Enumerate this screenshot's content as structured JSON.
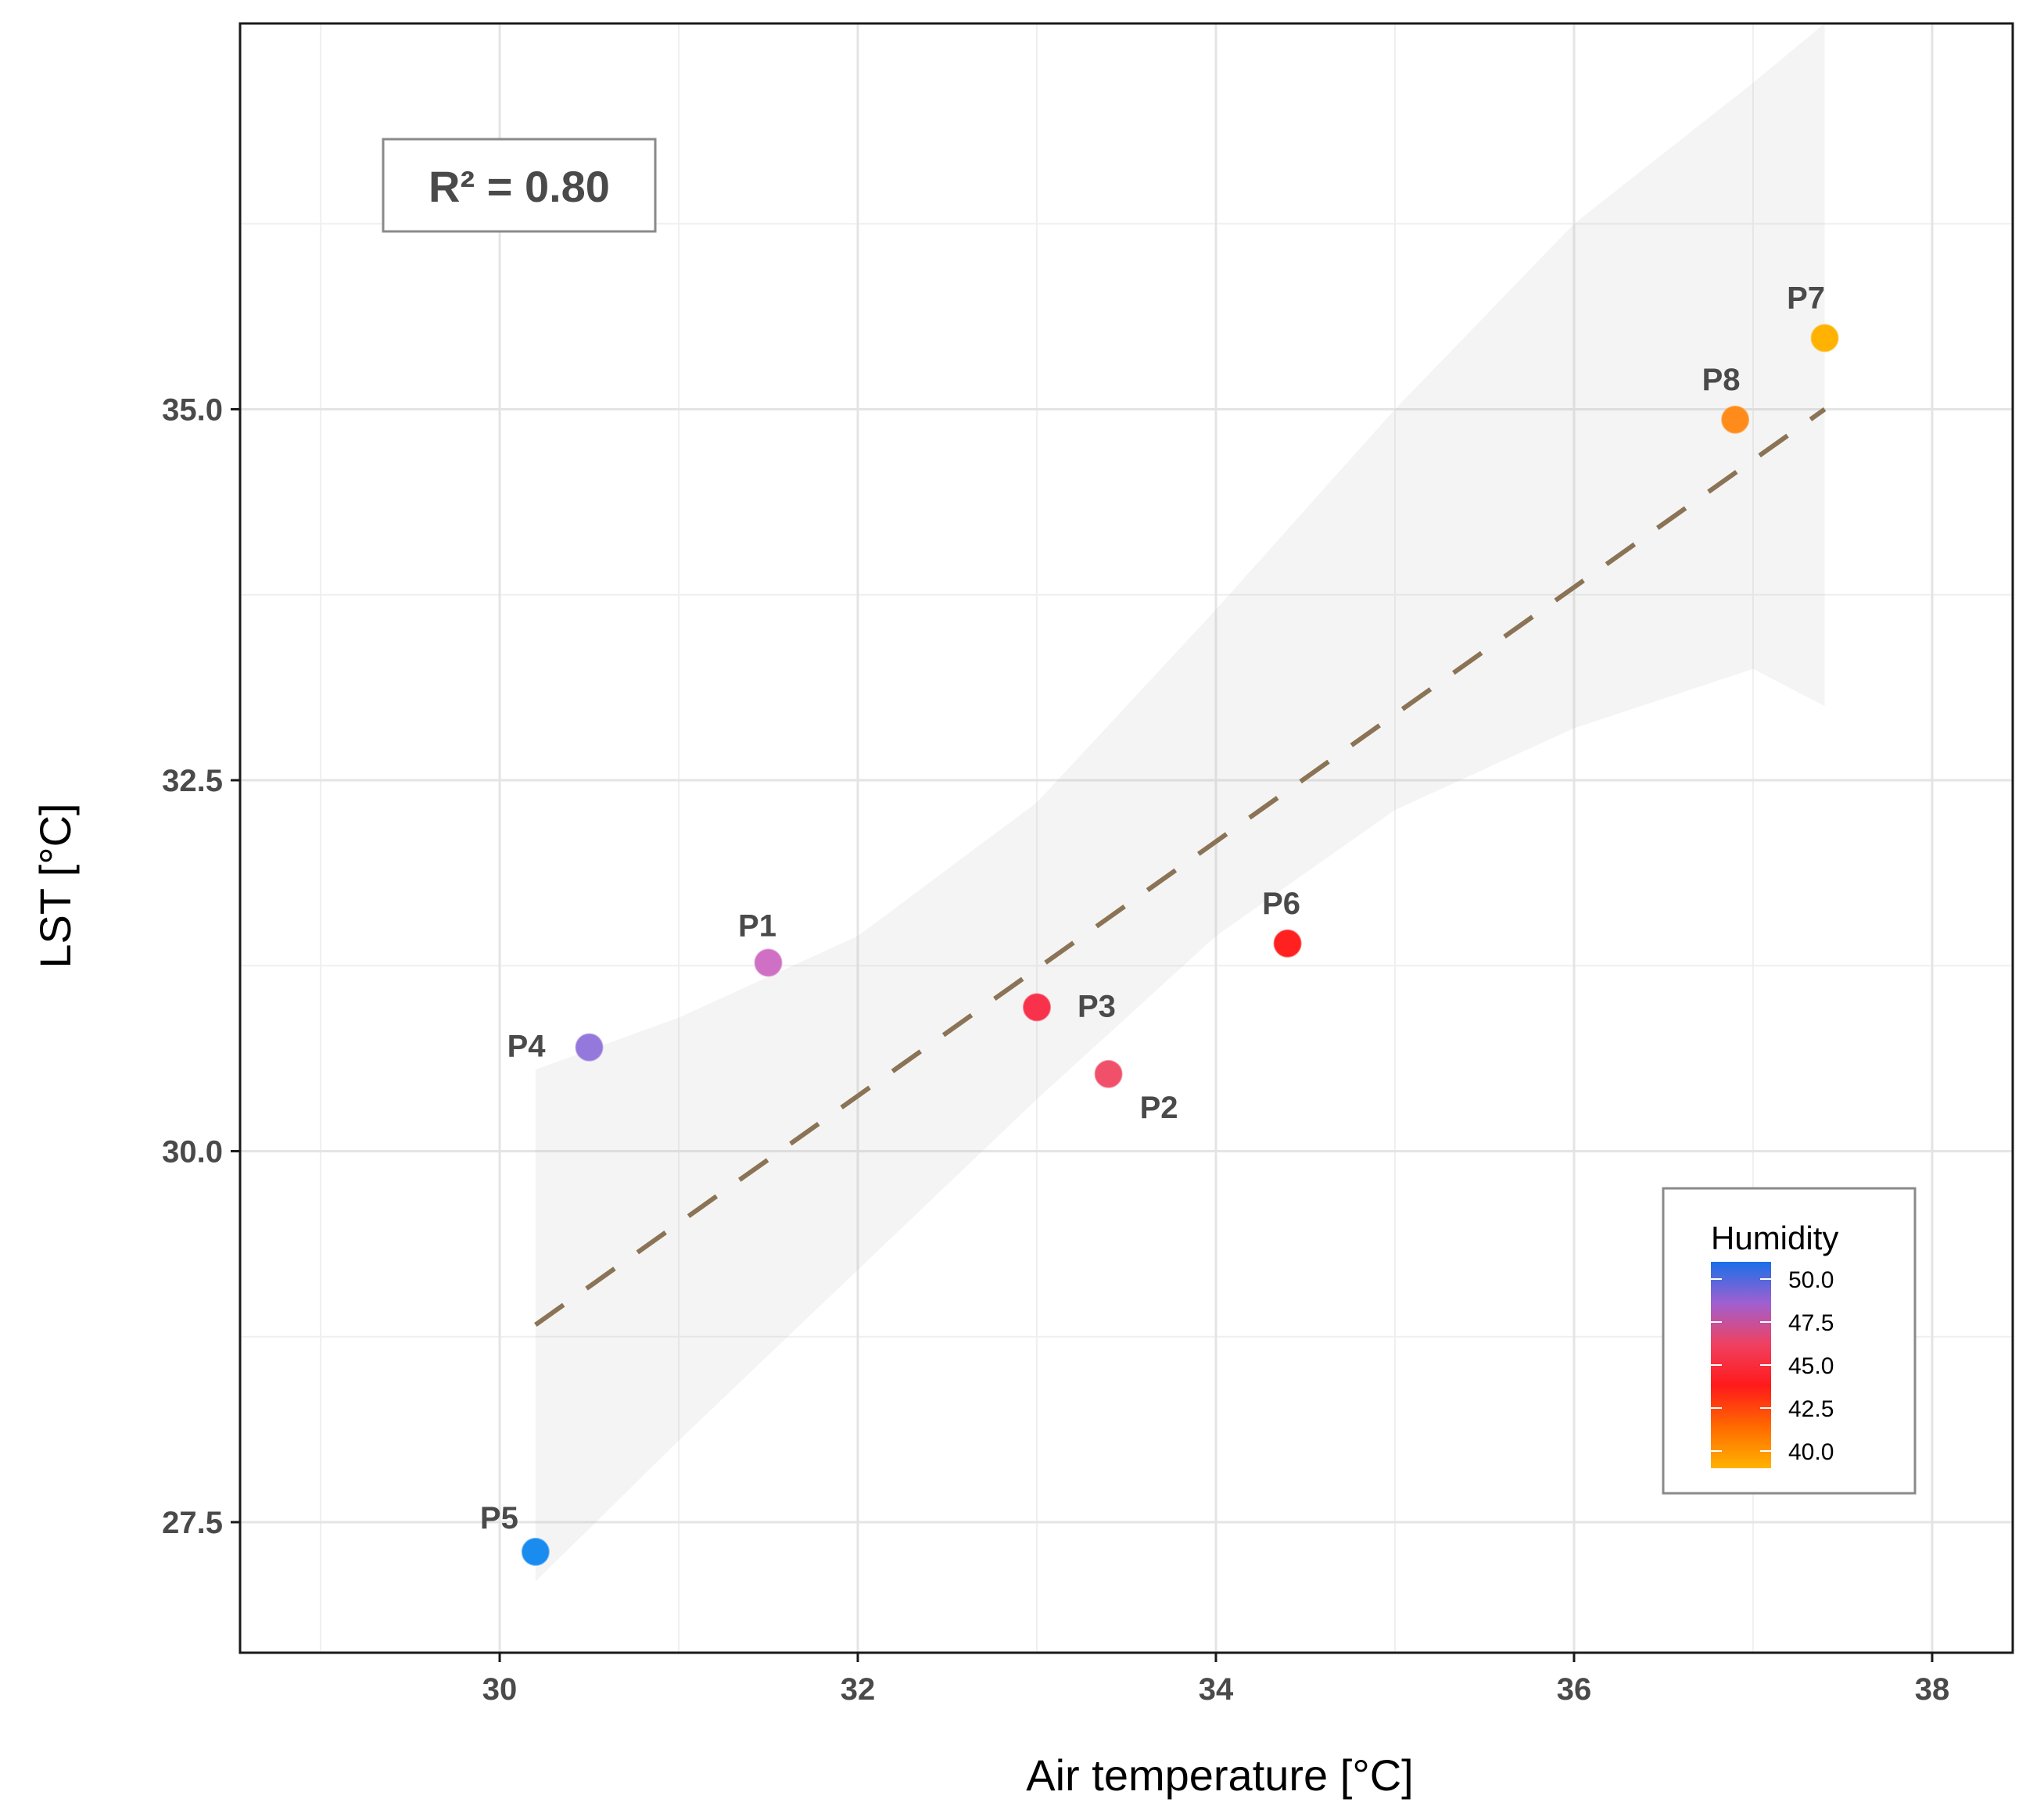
{
  "chart_data": {
    "type": "scatter",
    "xlabel": "Air temperature [°C]",
    "ylabel": "LST [°C]",
    "xlim": [
      28.55,
      38.45
    ],
    "ylim": [
      26.62,
      37.6
    ],
    "x_ticks": [
      "30",
      "32",
      "34",
      "36",
      "38"
    ],
    "x_tick_values": [
      30,
      32,
      34,
      36,
      38
    ],
    "y_ticks": [
      "27.5",
      "30.0",
      "32.5",
      "35.0"
    ],
    "y_tick_values": [
      27.5,
      30.0,
      32.5,
      35.0
    ],
    "x_minor_values": [
      29,
      31,
      33,
      35,
      37
    ],
    "y_minor_values": [
      28.75,
      31.25,
      33.75,
      36.25
    ],
    "grid": true,
    "annotation": "R² = 0.80",
    "points": [
      {
        "label": "P1",
        "x": 31.5,
        "y": 31.27,
        "humidity": 48.0,
        "color": "#d070c4"
      },
      {
        "label": "P2",
        "x": 33.4,
        "y": 30.52,
        "humidity": 46.5,
        "color": "#f0506a"
      },
      {
        "label": "P3",
        "x": 33.0,
        "y": 30.97,
        "humidity": 45.5,
        "color": "#f8324a"
      },
      {
        "label": "P4",
        "x": 30.5,
        "y": 30.7,
        "humidity": 49.0,
        "color": "#9478dc"
      },
      {
        "label": "P5",
        "x": 30.2,
        "y": 27.3,
        "humidity": 51.0,
        "color": "#1a8cf0"
      },
      {
        "label": "P6",
        "x": 34.4,
        "y": 31.4,
        "humidity": 44.8,
        "color": "#ff2020"
      },
      {
        "label": "P7",
        "x": 37.4,
        "y": 35.48,
        "humidity": 39.5,
        "color": "#ffb300"
      },
      {
        "label": "P8",
        "x": 36.9,
        "y": 34.93,
        "humidity": 41.5,
        "color": "#ff8c1a"
      }
    ],
    "fit_line": {
      "x": [
        30.2,
        37.4
      ],
      "y": [
        28.83,
        35.0
      ],
      "color": "#8b7355",
      "style": "dashed"
    },
    "confidence_band": {
      "x": [
        30.2,
        31.0,
        32.0,
        33.0,
        34.0,
        35.0,
        36.0,
        37.0,
        37.4
      ],
      "upper": [
        30.55,
        30.9,
        31.45,
        32.35,
        33.65,
        35.0,
        36.25,
        37.2,
        37.6
      ],
      "lower": [
        27.1,
        28.05,
        29.2,
        30.35,
        31.45,
        32.3,
        32.85,
        33.25,
        33.0
      ]
    },
    "legend": {
      "title": "Humidity",
      "position": "bottom-right",
      "type": "colorbar",
      "ticks": [
        "50.0",
        "47.5",
        "45.0",
        "42.5",
        "40.0"
      ],
      "tick_values": [
        50.0,
        47.5,
        45.0,
        42.5,
        40.0
      ],
      "range": [
        39.0,
        51.0
      ],
      "colors": [
        "#1a6fe8",
        "#a060d0",
        "#f04060",
        "#ff1a1a",
        "#ff6a00",
        "#ffb300"
      ]
    }
  }
}
